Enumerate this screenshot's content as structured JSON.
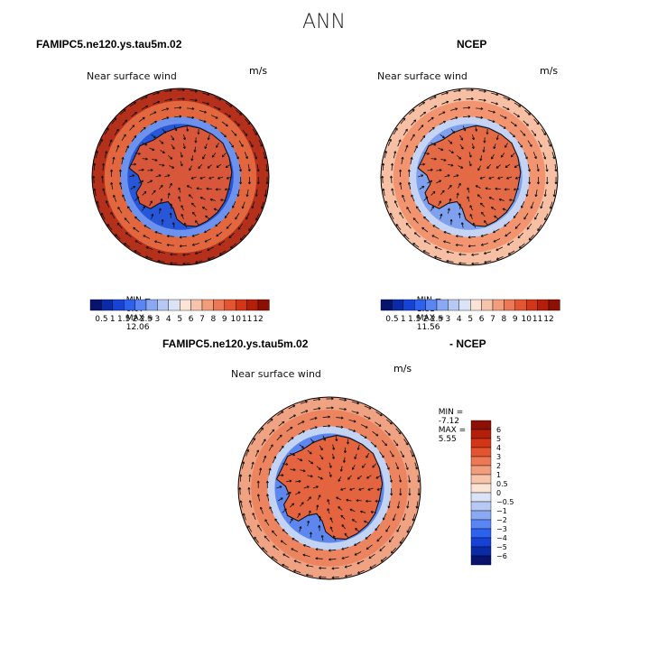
{
  "figure": {
    "title": "ANN"
  },
  "panels": [
    {
      "id": "model",
      "header": "FAMIPC5.ne120.ys.tau5m.02",
      "variable": "Near surface wind",
      "units": "m/s",
      "min_label": "MIN =",
      "min": "0.07",
      "max_label": "MAX =",
      "max": "12.06"
    },
    {
      "id": "obs",
      "header": "NCEP",
      "variable": "Near surface wind",
      "units": "m/s",
      "min_label": "MIN =",
      "min": "1.81",
      "max_label": "MAX =",
      "max": "11.56"
    },
    {
      "id": "diff",
      "header_left": "FAMIPC5.ne120.ys.tau5m.02",
      "header_right": "- NCEP",
      "variable": "Near surface wind",
      "units": "m/s",
      "min_label": "MIN =",
      "min": "-7.12",
      "max_label": "MAX =",
      "max": "5.55"
    }
  ],
  "colorbar_abs": {
    "labels": [
      "0.5",
      "1",
      "1.5",
      "2",
      "2.5",
      "3",
      "4",
      "5",
      "6",
      "7",
      "8",
      "9",
      "10",
      "11",
      "12"
    ],
    "colors": [
      "#08136e",
      "#0b2aa8",
      "#1642d6",
      "#2d62f0",
      "#5a86f5",
      "#8aa9f2",
      "#b6c8f3",
      "#dbe4f7",
      "#fbe3d6",
      "#f7c3aa",
      "#f29e7c",
      "#ec7856",
      "#e4552f",
      "#d23616",
      "#b41f0a",
      "#8c1004"
    ]
  },
  "colorbar_diff": {
    "labels": [
      "6",
      "5",
      "4",
      "3",
      "2",
      "1",
      "0.5",
      "0",
      "-0.5",
      "-1",
      "-2",
      "-3",
      "-4",
      "-5",
      "-6"
    ],
    "colors": [
      "#8c1004",
      "#b41f0a",
      "#d23616",
      "#e4552f",
      "#ec7856",
      "#f29e7c",
      "#f7c3aa",
      "#fbe3d6",
      "#dbe4f7",
      "#b6c8f3",
      "#8aa9f2",
      "#5a86f5",
      "#2d62f0",
      "#1642d6",
      "#0b2aa8",
      "#08136e"
    ]
  },
  "fields": {
    "model": {
      "inner": "#d8573a",
      "ring": "#2757d8",
      "ring2": "#6d92ee",
      "outer": "#e2673f",
      "edge": "#b4301a"
    },
    "obs": {
      "inner": "#e46a45",
      "ring": "#7ea0ee",
      "ring2": "#c5d4f4",
      "outer": "#f29470",
      "edge": "#f7bfa4"
    },
    "diff": {
      "inner": "#e3643e",
      "ring": "#5d86ef",
      "ring2": "#c2d3f4",
      "outer": "#ec8460",
      "edge": "#f0a383"
    }
  }
}
